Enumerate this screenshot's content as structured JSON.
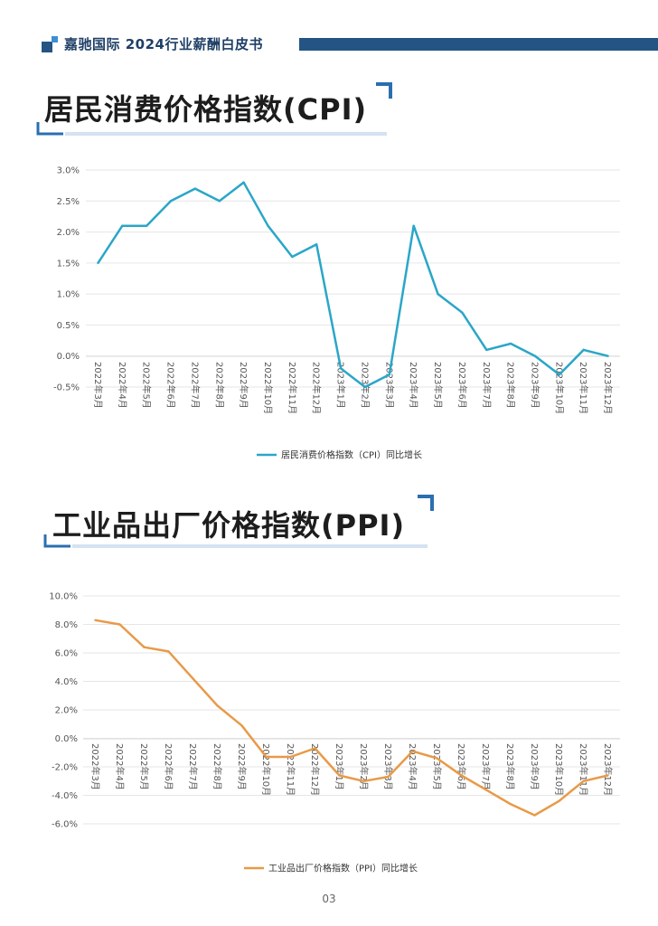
{
  "header": {
    "text": "嘉驰国际   2024行业薪酬白皮书"
  },
  "sections": [
    {
      "title": "居民消费价格指数(CPI)"
    },
    {
      "title": "工业品出厂价格指数(PPI)"
    }
  ],
  "page_number": "03",
  "colors": {
    "header_bar": "#245483",
    "cpi": "#2aa6c8",
    "ppi": "#e89a48",
    "accent": "#2a6fb0"
  },
  "chart_data": [
    {
      "type": "line",
      "categories": [
        "2022年3月",
        "2022年4月",
        "2022年5月",
        "2022年6月",
        "2022年7月",
        "2022年8月",
        "2022年9月",
        "2022年10月",
        "2022年11月",
        "2022年12月",
        "2023年1月",
        "2023年2月",
        "2023年3月",
        "2023年4月",
        "2023年5月",
        "2023年6月",
        "2023年7月",
        "2023年8月",
        "2023年9月",
        "2023年10月",
        "2023年11月",
        "2023年12月"
      ],
      "series": [
        {
          "name": "居民消费价格指数（CPI）同比增长",
          "values": [
            1.5,
            2.1,
            2.1,
            2.5,
            2.7,
            2.5,
            2.8,
            2.1,
            1.6,
            1.8,
            -0.2,
            -0.5,
            -0.3,
            2.1,
            1.0,
            0.7,
            0.1,
            0.2,
            0.0,
            -0.3,
            0.1,
            0.0
          ]
        }
      ],
      "ylim": [
        -0.5,
        3.0
      ],
      "yticks": [
        "3.0%",
        "2.5%",
        "2.0%",
        "1.5%",
        "1.0%",
        "0.5%",
        "0.0%",
        "-0.5%"
      ],
      "legend_position": "bottom"
    },
    {
      "type": "line",
      "categories": [
        "2022年3月",
        "2022年4月",
        "2022年5月",
        "2022年6月",
        "2022年7月",
        "2022年8月",
        "2022年9月",
        "2022年10月",
        "2022年11月",
        "2022年12月",
        "2023年1月",
        "2023年2月",
        "2023年3月",
        "2023年4月",
        "2023年5月",
        "2023年6月",
        "2023年7月",
        "2023年8月",
        "2023年9月",
        "2023年10月",
        "2023年11月",
        "2023年12月"
      ],
      "series": [
        {
          "name": "工业品出厂价格指数（PPI）同比增长",
          "values": [
            8.3,
            8.0,
            6.4,
            6.1,
            4.2,
            2.3,
            0.9,
            -1.3,
            -1.3,
            -0.7,
            -2.6,
            -3.0,
            -2.7,
            -0.9,
            -1.4,
            -2.6,
            -3.6,
            -4.6,
            -5.4,
            -4.4,
            -3.0,
            -2.6
          ]
        }
      ],
      "ylim": [
        -6.0,
        10.0
      ],
      "yticks": [
        "10.0%",
        "8.0%",
        "6.0%",
        "4.0%",
        "2.0%",
        "0.0%",
        "-2.0%",
        "-4.0%",
        "-6.0%"
      ],
      "legend_position": "bottom"
    }
  ]
}
